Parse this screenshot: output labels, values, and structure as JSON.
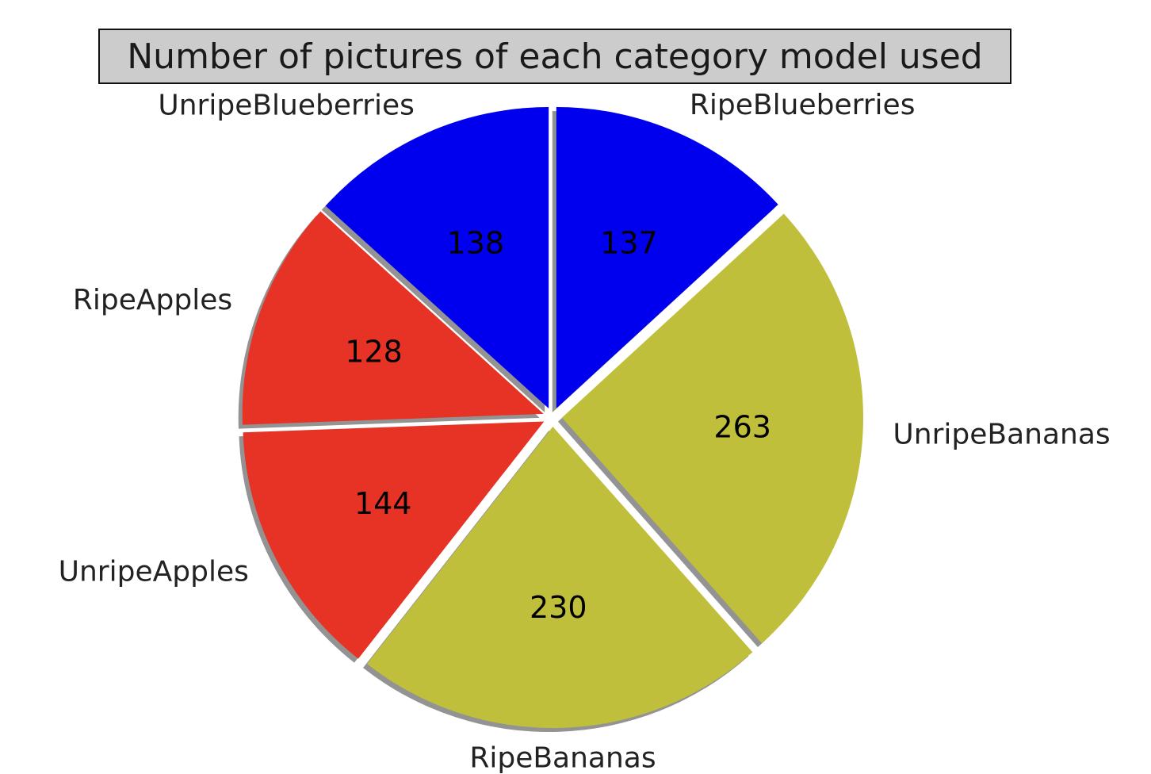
{
  "chart_data": {
    "type": "pie",
    "title": "Number of pictures of each category model used",
    "labels": [
      "UnripeBlueberries",
      "RipeApples",
      "UnripeApples",
      "RipeBananas",
      "UnripeBananas",
      "RipeBlueberries"
    ],
    "values": [
      138,
      128,
      144,
      230,
      263,
      137
    ],
    "value_labels": [
      "138",
      "128",
      "144",
      "230",
      "263",
      "137"
    ],
    "colors": [
      "#0000ee",
      "#e63325",
      "#e63325",
      "#c0bf3c",
      "#c0bf3c",
      "#0000ee"
    ],
    "start_angle_deg": 90,
    "direction": "counterclockwise",
    "exploded": true,
    "shadow": true,
    "legend": "none"
  }
}
